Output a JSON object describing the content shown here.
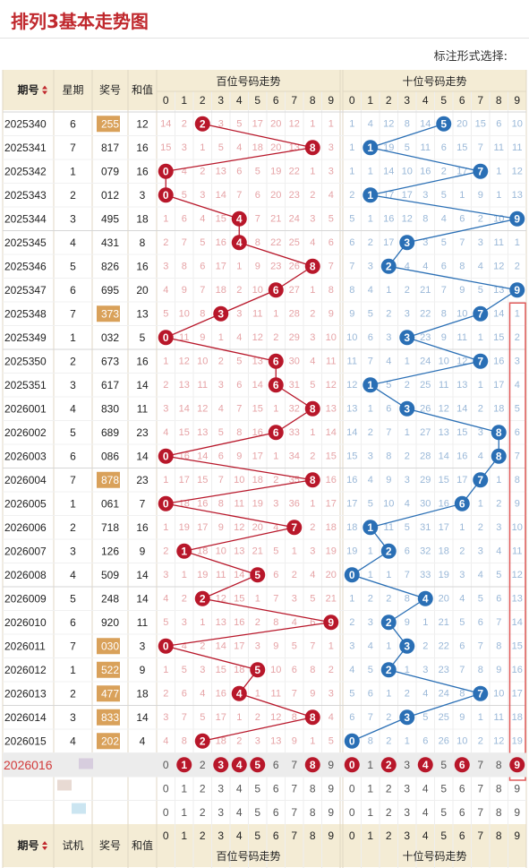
{
  "title": "排列3基本走势图",
  "mode_label": "标注形式选择:",
  "header": {
    "period": "期号",
    "week": "星期",
    "draw": "奖号",
    "sum": "和值",
    "hundreds": "百位号码走势",
    "tens": "十位号码走势",
    "trial": "试机",
    "sort_icon": "sort-arrows"
  },
  "digits": [
    "0",
    "1",
    "2",
    "3",
    "4",
    "5",
    "6",
    "7",
    "8",
    "9"
  ],
  "colors": {
    "ball_red": "#b8172a",
    "ball_blue": "#2a6fb5",
    "miss_red": "#e6a3a6",
    "miss_blue": "#9ab8d8",
    "header_bg": "#f4ecd5",
    "highlight": "#d9a15a"
  },
  "chart_data": {
    "type": "table",
    "rows": [
      {
        "period": "2025340",
        "week": "6",
        "draw": "255",
        "sum": "12",
        "hl": true,
        "h": [
          "14",
          "2",
          "2",
          "3",
          "5",
          "17",
          "20",
          "12",
          "1",
          "1"
        ],
        "t": [
          "1",
          "4",
          "12",
          "8",
          "14",
          "5",
          "20",
          "15",
          "6",
          "10"
        ]
      },
      {
        "period": "2025341",
        "week": "7",
        "draw": "817",
        "sum": "16",
        "hl": false,
        "h": [
          "15",
          "3",
          "1",
          "5",
          "4",
          "18",
          "20",
          "13",
          "8",
          "3"
        ],
        "t": [
          "1",
          "1",
          "19",
          "5",
          "11",
          "6",
          "15",
          "7",
          "11",
          "11"
        ]
      },
      {
        "period": "2025342",
        "week": "1",
        "draw": "079",
        "sum": "16",
        "hl": false,
        "h": [
          "0",
          "4",
          "2",
          "13",
          "6",
          "5",
          "19",
          "22",
          "1",
          "3"
        ],
        "t": [
          "1",
          "1",
          "14",
          "10",
          "16",
          "2",
          "17",
          "7",
          "1",
          "12"
        ]
      },
      {
        "period": "2025343",
        "week": "2",
        "draw": "012",
        "sum": "3",
        "hl": false,
        "h": [
          "0",
          "5",
          "3",
          "14",
          "7",
          "6",
          "20",
          "23",
          "2",
          "4"
        ],
        "t": [
          "2",
          "1",
          "17",
          "17",
          "3",
          "5",
          "1",
          "9",
          "1",
          "13"
        ]
      },
      {
        "period": "2025344",
        "week": "3",
        "draw": "495",
        "sum": "18",
        "hl": false,
        "h": [
          "1",
          "6",
          "4",
          "15",
          "4",
          "7",
          "21",
          "24",
          "3",
          "5"
        ],
        "t": [
          "5",
          "1",
          "16",
          "12",
          "8",
          "4",
          "6",
          "2",
          "10",
          "9"
        ]
      },
      {
        "period": "2025345",
        "week": "4",
        "draw": "431",
        "sum": "8",
        "hl": false,
        "h": [
          "2",
          "7",
          "5",
          "16",
          "4",
          "8",
          "22",
          "25",
          "4",
          "6"
        ],
        "t": [
          "6",
          "2",
          "17",
          "3",
          "3",
          "5",
          "7",
          "3",
          "11",
          "1"
        ]
      },
      {
        "period": "2025346",
        "week": "5",
        "draw": "826",
        "sum": "16",
        "hl": false,
        "h": [
          "3",
          "8",
          "6",
          "17",
          "1",
          "9",
          "23",
          "26",
          "8",
          "7"
        ],
        "t": [
          "7",
          "3",
          "2",
          "4",
          "4",
          "6",
          "8",
          "4",
          "12",
          "2"
        ]
      },
      {
        "period": "2025347",
        "week": "6",
        "draw": "695",
        "sum": "20",
        "hl": false,
        "h": [
          "4",
          "9",
          "7",
          "18",
          "2",
          "10",
          "6",
          "27",
          "1",
          "8"
        ],
        "t": [
          "8",
          "4",
          "1",
          "2",
          "21",
          "7",
          "9",
          "5",
          "13",
          "9"
        ]
      },
      {
        "period": "2025348",
        "week": "7",
        "draw": "373",
        "sum": "13",
        "hl": true,
        "h": [
          "5",
          "10",
          "8",
          "3",
          "3",
          "11",
          "1",
          "28",
          "2",
          "9"
        ],
        "t": [
          "9",
          "5",
          "2",
          "3",
          "22",
          "8",
          "10",
          "7",
          "14",
          "1"
        ]
      },
      {
        "period": "2025349",
        "week": "1",
        "draw": "032",
        "sum": "5",
        "hl": false,
        "h": [
          "0",
          "11",
          "9",
          "1",
          "4",
          "12",
          "2",
          "29",
          "3",
          "10"
        ],
        "t": [
          "10",
          "6",
          "3",
          "3",
          "23",
          "9",
          "11",
          "1",
          "15",
          "2"
        ]
      },
      {
        "period": "2025350",
        "week": "2",
        "draw": "673",
        "sum": "16",
        "hl": false,
        "h": [
          "1",
          "12",
          "10",
          "2",
          "5",
          "13",
          "6",
          "30",
          "4",
          "11"
        ],
        "t": [
          "11",
          "7",
          "4",
          "1",
          "24",
          "10",
          "12",
          "7",
          "16",
          "3"
        ]
      },
      {
        "period": "2025351",
        "week": "3",
        "draw": "617",
        "sum": "14",
        "hl": false,
        "h": [
          "2",
          "13",
          "11",
          "3",
          "6",
          "14",
          "6",
          "31",
          "5",
          "12"
        ],
        "t": [
          "12",
          "1",
          "5",
          "2",
          "25",
          "11",
          "13",
          "1",
          "17",
          "4"
        ]
      },
      {
        "period": "2026001",
        "week": "4",
        "draw": "830",
        "sum": "11",
        "hl": false,
        "h": [
          "3",
          "14",
          "12",
          "4",
          "7",
          "15",
          "1",
          "32",
          "8",
          "13"
        ],
        "t": [
          "13",
          "1",
          "6",
          "3",
          "26",
          "12",
          "14",
          "2",
          "18",
          "5"
        ]
      },
      {
        "period": "2026002",
        "week": "5",
        "draw": "689",
        "sum": "23",
        "hl": false,
        "h": [
          "4",
          "15",
          "13",
          "5",
          "8",
          "16",
          "6",
          "33",
          "1",
          "14"
        ],
        "t": [
          "14",
          "2",
          "7",
          "1",
          "27",
          "13",
          "15",
          "3",
          "8",
          "6"
        ]
      },
      {
        "period": "2026003",
        "week": "6",
        "draw": "086",
        "sum": "14",
        "hl": false,
        "h": [
          "0",
          "16",
          "14",
          "6",
          "9",
          "17",
          "1",
          "34",
          "2",
          "15"
        ],
        "t": [
          "15",
          "3",
          "8",
          "2",
          "28",
          "14",
          "16",
          "4",
          "8",
          "7"
        ]
      },
      {
        "period": "2026004",
        "week": "7",
        "draw": "878",
        "sum": "23",
        "hl": true,
        "h": [
          "1",
          "17",
          "15",
          "7",
          "10",
          "18",
          "2",
          "35",
          "8",
          "16"
        ],
        "t": [
          "16",
          "4",
          "9",
          "3",
          "29",
          "15",
          "17",
          "7",
          "1",
          "8"
        ]
      },
      {
        "period": "2026005",
        "week": "1",
        "draw": "061",
        "sum": "7",
        "hl": false,
        "h": [
          "0",
          "18",
          "16",
          "8",
          "11",
          "19",
          "3",
          "36",
          "1",
          "17"
        ],
        "t": [
          "17",
          "5",
          "10",
          "4",
          "30",
          "16",
          "6",
          "1",
          "2",
          "9"
        ]
      },
      {
        "period": "2026006",
        "week": "2",
        "draw": "718",
        "sum": "16",
        "hl": false,
        "h": [
          "1",
          "19",
          "17",
          "9",
          "12",
          "20",
          "4",
          "7",
          "2",
          "18"
        ],
        "t": [
          "18",
          "1",
          "11",
          "5",
          "31",
          "17",
          "1",
          "2",
          "3",
          "10"
        ]
      },
      {
        "period": "2026007",
        "week": "3",
        "draw": "126",
        "sum": "9",
        "hl": false,
        "h": [
          "2",
          "1",
          "18",
          "10",
          "13",
          "21",
          "5",
          "1",
          "3",
          "19"
        ],
        "t": [
          "19",
          "1",
          "2",
          "6",
          "32",
          "18",
          "2",
          "3",
          "4",
          "11"
        ]
      },
      {
        "period": "2026008",
        "week": "4",
        "draw": "509",
        "sum": "14",
        "hl": false,
        "h": [
          "3",
          "1",
          "19",
          "11",
          "14",
          "5",
          "6",
          "2",
          "4",
          "20"
        ],
        "t": [
          "0",
          "1",
          "1",
          "7",
          "33",
          "19",
          "3",
          "4",
          "5",
          "12"
        ]
      },
      {
        "period": "2026009",
        "week": "5",
        "draw": "248",
        "sum": "14",
        "hl": false,
        "h": [
          "4",
          "2",
          "2",
          "12",
          "15",
          "1",
          "7",
          "3",
          "5",
          "21"
        ],
        "t": [
          "1",
          "2",
          "2",
          "8",
          "4",
          "20",
          "4",
          "5",
          "6",
          "13"
        ]
      },
      {
        "period": "2026010",
        "week": "6",
        "draw": "920",
        "sum": "11",
        "hl": false,
        "h": [
          "5",
          "3",
          "1",
          "13",
          "16",
          "2",
          "8",
          "4",
          "6",
          "9"
        ],
        "t": [
          "2",
          "3",
          "2",
          "9",
          "1",
          "21",
          "5",
          "6",
          "7",
          "14"
        ]
      },
      {
        "period": "2026011",
        "week": "7",
        "draw": "030",
        "sum": "3",
        "hl": true,
        "h": [
          "0",
          "4",
          "2",
          "14",
          "17",
          "3",
          "9",
          "5",
          "7",
          "1"
        ],
        "t": [
          "3",
          "4",
          "1",
          "3",
          "2",
          "22",
          "6",
          "7",
          "8",
          "15"
        ]
      },
      {
        "period": "2026012",
        "week": "1",
        "draw": "522",
        "sum": "9",
        "hl": true,
        "h": [
          "1",
          "5",
          "3",
          "15",
          "18",
          "5",
          "10",
          "6",
          "8",
          "2"
        ],
        "t": [
          "4",
          "5",
          "2",
          "1",
          "3",
          "23",
          "7",
          "8",
          "9",
          "16"
        ]
      },
      {
        "period": "2026013",
        "week": "2",
        "draw": "477",
        "sum": "18",
        "hl": true,
        "h": [
          "2",
          "6",
          "4",
          "16",
          "4",
          "1",
          "11",
          "7",
          "9",
          "3"
        ],
        "t": [
          "5",
          "6",
          "1",
          "2",
          "4",
          "24",
          "8",
          "7",
          "10",
          "17"
        ]
      },
      {
        "period": "2026014",
        "week": "3",
        "draw": "833",
        "sum": "14",
        "hl": true,
        "h": [
          "3",
          "7",
          "5",
          "17",
          "1",
          "2",
          "12",
          "8",
          "8",
          "4"
        ],
        "t": [
          "6",
          "7",
          "2",
          "3",
          "5",
          "25",
          "9",
          "1",
          "11",
          "18"
        ]
      },
      {
        "period": "2026015",
        "week": "4",
        "draw": "202",
        "sum": "4",
        "hl": true,
        "h": [
          "4",
          "8",
          "2",
          "18",
          "2",
          "3",
          "13",
          "9",
          "1",
          "5"
        ],
        "t": [
          "0",
          "8",
          "2",
          "1",
          "6",
          "26",
          "10",
          "2",
          "12",
          "19"
        ]
      }
    ],
    "pending_period": "2026016",
    "predict_h": [
      1,
      3,
      4,
      5,
      8
    ],
    "predict_t": [
      0,
      2,
      4,
      6,
      9
    ]
  }
}
